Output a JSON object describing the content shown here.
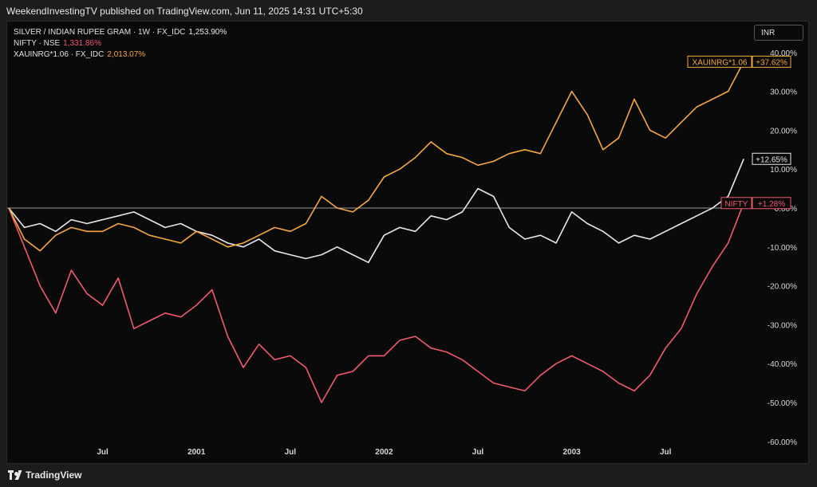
{
  "header": {
    "published": "WeekendInvestingTV published on TradingView.com, Jun 11, 2025 14:31 UTC+5:30"
  },
  "legend": [
    {
      "label": "SILVER / INDIAN RUPEE GRAM · 1W · FX_IDC",
      "value": "1,253.90%",
      "color": "#e8e8e8"
    },
    {
      "label": "NIFTY · NSE",
      "value": "1,331.86%",
      "color": "#f05a6e"
    },
    {
      "label": "XAUINRG*1.06 · FX_IDC",
      "value": "2,013.07%",
      "color": "#f5a742"
    }
  ],
  "currency_button": "INR",
  "footer": {
    "brand": "TradingView"
  },
  "colors": {
    "silver": "#e8e8e8",
    "nifty": "#f05a6e",
    "gold": "#f5a742",
    "background": "#0a0a0a",
    "zero_line": "#9a9a9a"
  },
  "tags": {
    "gold": {
      "name": "XAUINRG*1.06",
      "value": "+37.62%"
    },
    "silver": {
      "value": "+12.65%"
    },
    "nifty": {
      "name": "NIFTY",
      "value": "+1.28%"
    }
  },
  "chart_data": {
    "type": "line",
    "y_unit": "%",
    "ylim": [
      -60,
      40
    ],
    "y_ticks": [
      40,
      30,
      20,
      10,
      0,
      -10,
      -20,
      -30,
      -40,
      -50,
      -60
    ],
    "y_tick_labels": [
      "40.00%",
      "30.00%",
      "20.00%",
      "10.00%",
      "0.00%",
      "-10.00%",
      "-20.00%",
      "-30.00%",
      "-40.00%",
      "-50.00%",
      "-60.00%"
    ],
    "x_range": [
      "2000-01",
      "2003-12"
    ],
    "x_ticks": [
      {
        "label": "Jul",
        "x": "2000-07"
      },
      {
        "label": "2001",
        "x": "2001-01"
      },
      {
        "label": "Jul",
        "x": "2001-07"
      },
      {
        "label": "2002",
        "x": "2002-01"
      },
      {
        "label": "Jul",
        "x": "2002-07"
      },
      {
        "label": "2003",
        "x": "2003-01"
      },
      {
        "label": "Jul",
        "x": "2003-07"
      }
    ],
    "grid": false,
    "series": [
      {
        "name": "SILVER / INDIAN RUPEE GRAM",
        "color": "#e8e8e8",
        "x": [
          "2000-01",
          "2000-02",
          "2000-03",
          "2000-04",
          "2000-05",
          "2000-06",
          "2000-07",
          "2000-08",
          "2000-09",
          "2000-10",
          "2000-11",
          "2000-12",
          "2001-01",
          "2001-02",
          "2001-03",
          "2001-04",
          "2001-05",
          "2001-06",
          "2001-07",
          "2001-08",
          "2001-09",
          "2001-10",
          "2001-11",
          "2001-12",
          "2002-01",
          "2002-02",
          "2002-03",
          "2002-04",
          "2002-05",
          "2002-06",
          "2002-07",
          "2002-08",
          "2002-09",
          "2002-10",
          "2002-11",
          "2002-12",
          "2003-01",
          "2003-02",
          "2003-03",
          "2003-04",
          "2003-05",
          "2003-06",
          "2003-07",
          "2003-08",
          "2003-09",
          "2003-10",
          "2003-11",
          "2003-12"
        ],
        "y": [
          0,
          -5,
          -4,
          -6,
          -3,
          -4,
          -3,
          -2,
          -1,
          -3,
          -5,
          -4,
          -6,
          -7,
          -9,
          -10,
          -8,
          -11,
          -12,
          -13,
          -12,
          -10,
          -12,
          -14,
          -7,
          -5,
          -6,
          -2,
          -3,
          -1,
          5,
          3,
          -5,
          -8,
          -7,
          -9,
          -1,
          -4,
          -6,
          -9,
          -7,
          -8,
          -6,
          -4,
          -2,
          0,
          3,
          12.65
        ]
      },
      {
        "name": "NIFTY",
        "color": "#f05a6e",
        "x": [
          "2000-01",
          "2000-02",
          "2000-03",
          "2000-04",
          "2000-05",
          "2000-06",
          "2000-07",
          "2000-08",
          "2000-09",
          "2000-10",
          "2000-11",
          "2000-12",
          "2001-01",
          "2001-02",
          "2001-03",
          "2001-04",
          "2001-05",
          "2001-06",
          "2001-07",
          "2001-08",
          "2001-09",
          "2001-10",
          "2001-11",
          "2001-12",
          "2002-01",
          "2002-02",
          "2002-03",
          "2002-04",
          "2002-05",
          "2002-06",
          "2002-07",
          "2002-08",
          "2002-09",
          "2002-10",
          "2002-11",
          "2002-12",
          "2003-01",
          "2003-02",
          "2003-03",
          "2003-04",
          "2003-05",
          "2003-06",
          "2003-07",
          "2003-08",
          "2003-09",
          "2003-10",
          "2003-11",
          "2003-12"
        ],
        "y": [
          0,
          -10,
          -20,
          -27,
          -16,
          -22,
          -25,
          -18,
          -31,
          -29,
          -27,
          -28,
          -25,
          -21,
          -33,
          -41,
          -35,
          -39,
          -38,
          -41,
          -50,
          -43,
          -42,
          -38,
          -38,
          -34,
          -33,
          -36,
          -37,
          -39,
          -42,
          -45,
          -46,
          -47,
          -43,
          -40,
          -38,
          -40,
          -42,
          -45,
          -47,
          -43,
          -36,
          -31,
          -22,
          -15,
          -9,
          1.28
        ]
      },
      {
        "name": "XAUINRG*1.06",
        "color": "#f5a742",
        "x": [
          "2000-01",
          "2000-02",
          "2000-03",
          "2000-04",
          "2000-05",
          "2000-06",
          "2000-07",
          "2000-08",
          "2000-09",
          "2000-10",
          "2000-11",
          "2000-12",
          "2001-01",
          "2001-02",
          "2001-03",
          "2001-04",
          "2001-05",
          "2001-06",
          "2001-07",
          "2001-08",
          "2001-09",
          "2001-10",
          "2001-11",
          "2001-12",
          "2002-01",
          "2002-02",
          "2002-03",
          "2002-04",
          "2002-05",
          "2002-06",
          "2002-07",
          "2002-08",
          "2002-09",
          "2002-10",
          "2002-11",
          "2002-12",
          "2003-01",
          "2003-02",
          "2003-03",
          "2003-04",
          "2003-05",
          "2003-06",
          "2003-07",
          "2003-08",
          "2003-09",
          "2003-10",
          "2003-11",
          "2003-12"
        ],
        "y": [
          0,
          -8,
          -11,
          -7,
          -5,
          -6,
          -6,
          -4,
          -5,
          -7,
          -8,
          -9,
          -6,
          -8,
          -10,
          -9,
          -7,
          -5,
          -6,
          -4,
          3,
          0,
          -1,
          2,
          8,
          10,
          13,
          17,
          14,
          13,
          11,
          12,
          14,
          15,
          14,
          22,
          30,
          24,
          15,
          18,
          28,
          20,
          18,
          22,
          26,
          28,
          30,
          37.62
        ]
      }
    ]
  }
}
